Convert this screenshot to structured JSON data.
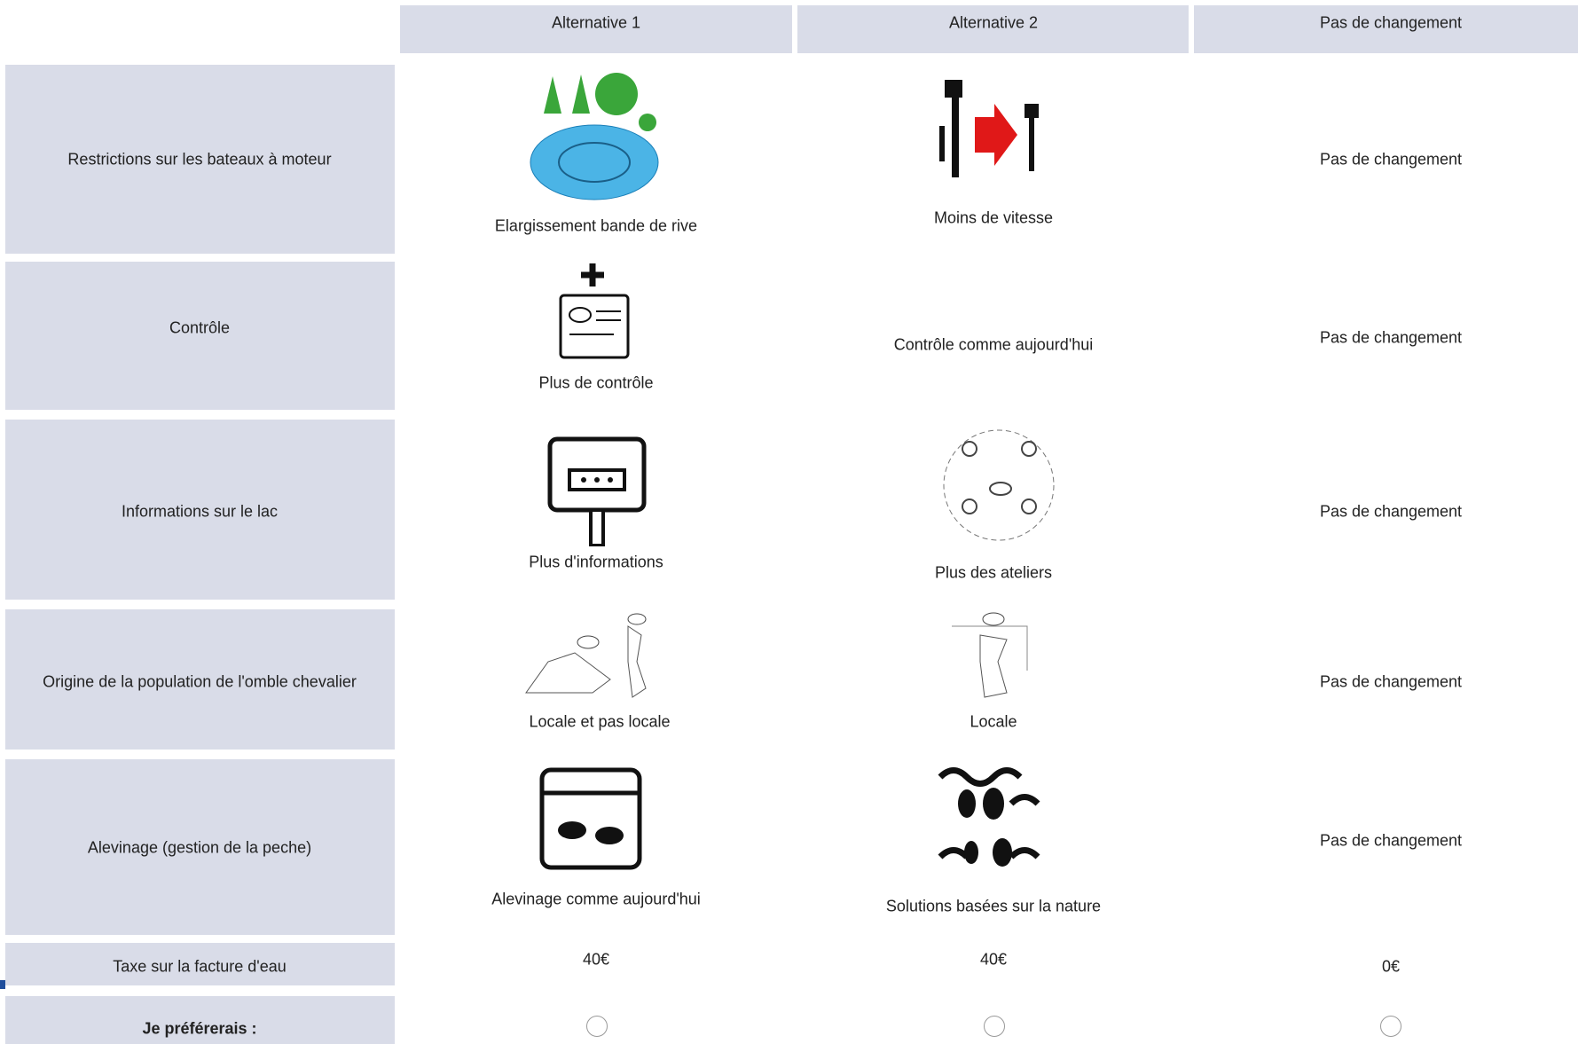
{
  "header": {
    "columns": [
      "Alternative 1",
      "Alternative 2",
      "Pas de changement"
    ]
  },
  "rows": [
    {
      "label": "Restrictions sur les bateaux à moteur",
      "cells": [
        "Elargissement bande de rive",
        "Moins de vitesse",
        "Pas de changement"
      ]
    },
    {
      "label": "Contrôle",
      "cells": [
        "Plus de contrôle",
        "Contrôle comme aujourd'hui",
        "Pas de changement"
      ]
    },
    {
      "label": "Informations sur le lac",
      "cells": [
        "Plus d'informations",
        "Plus des ateliers",
        "Pas de changement"
      ]
    },
    {
      "label": "Origine de la population de l'omble chevalier",
      "cells": [
        "Locale et pas locale",
        "Locale",
        "Pas de changement"
      ]
    },
    {
      "label": "Alevinage (gestion de la peche)",
      "cells": [
        "Alevinage comme aujourd'hui",
        "Solutions basées sur la nature",
        "Pas de changement"
      ]
    },
    {
      "label": "Taxe sur la facture d'eau",
      "cells": [
        "40€",
        "40€",
        "0€"
      ]
    },
    {
      "label": "Je préférerais :"
    }
  ]
}
